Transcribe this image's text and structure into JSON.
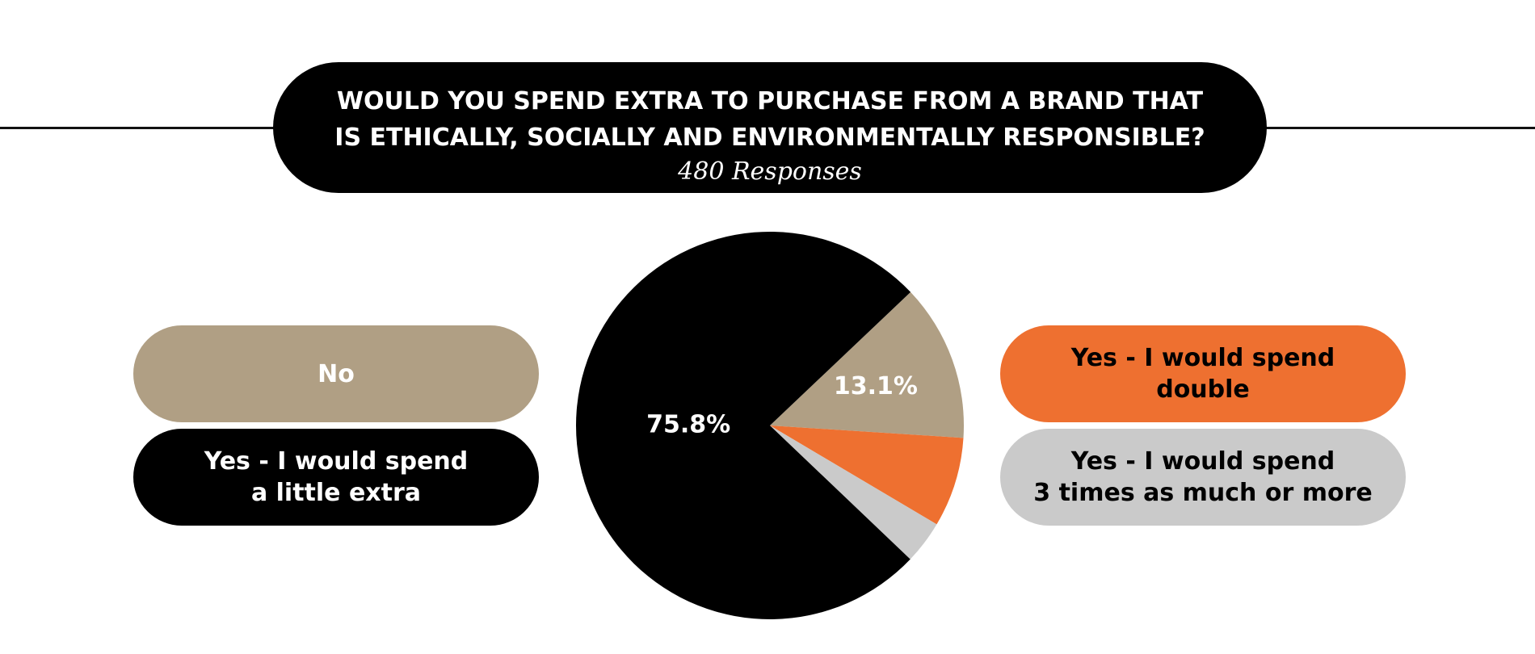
{
  "chart_data": {
    "type": "pie",
    "title_lines": [
      "WOULD YOU SPEND EXTRA TO PURCHASE FROM A BRAND THAT",
      "IS ETHICALLY, SOCIALLY AND ENVIRONMENTALLY RESPONSIBLE?"
    ],
    "subtitle": "480 Responses",
    "slices": [
      {
        "name": "No",
        "legend_lines": [
          "No"
        ],
        "value": 13.1,
        "label": "13.1%",
        "color": "#B09F84",
        "text_color": "#ffffff"
      },
      {
        "name": "Yes - I would spend double",
        "legend_lines": [
          "Yes - I would spend",
          "double"
        ],
        "value": 7.5,
        "label": "",
        "color": "#EE7030",
        "text_color": "#000000"
      },
      {
        "name": "Yes - I would spend 3 times as much or more",
        "legend_lines": [
          "Yes - I would spend",
          "3 times as much or more"
        ],
        "value": 3.6,
        "label": "",
        "color": "#CACACA",
        "text_color": "#000000"
      },
      {
        "name": "Yes - I would spend a little extra",
        "legend_lines": [
          "Yes - I would spend",
          "a little extra"
        ],
        "value": 75.8,
        "label": "75.8%",
        "color": "#000000",
        "text_color": "#ffffff"
      }
    ]
  }
}
